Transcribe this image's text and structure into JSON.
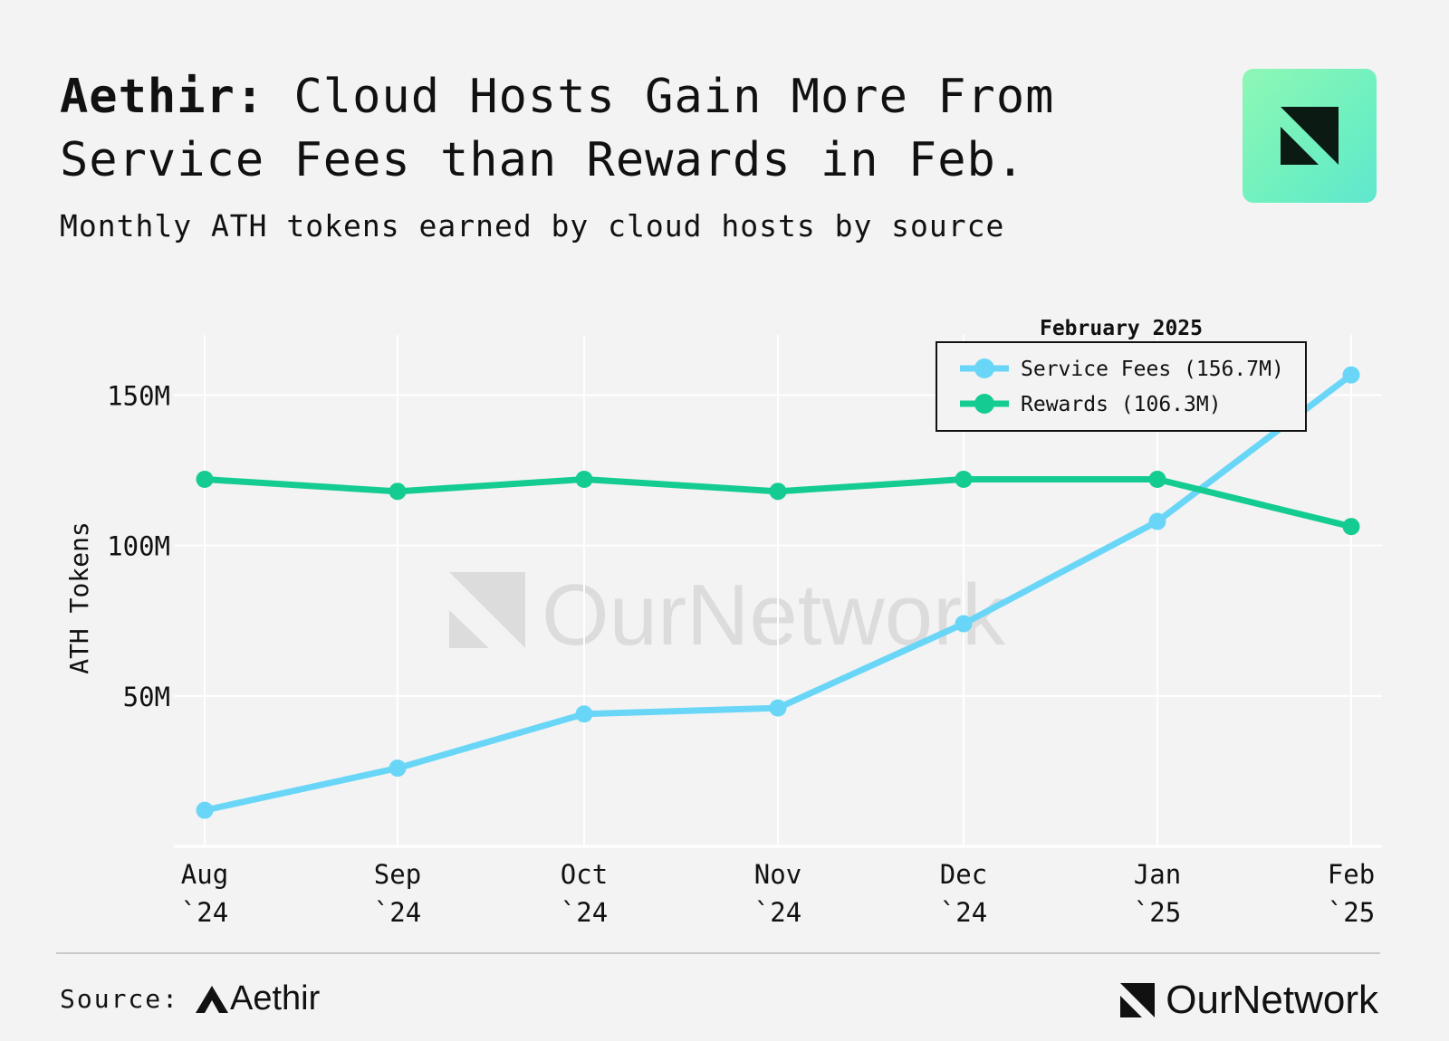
{
  "header": {
    "title_bold": "Aethir:",
    "title_rest": " Cloud Hosts Gain More From Service Fees than Rewards in Feb.",
    "subtitle": "Monthly ATH tokens earned by cloud hosts by source"
  },
  "brand_logo": {
    "icon": "ournetwork-logo-icon"
  },
  "watermark": {
    "text": "OurNetwork"
  },
  "footer": {
    "source_label": "Source:",
    "source_brand": "Aethir",
    "brand_name": "OurNetwork"
  },
  "chart_data": {
    "type": "line",
    "ylabel": "ATH Tokens",
    "xlabel": "",
    "ylim": [
      0,
      170000000
    ],
    "yticks": [
      50000000,
      100000000,
      150000000
    ],
    "ytick_labels": [
      "50M",
      "100M",
      "150M"
    ],
    "categories": [
      [
        "Aug",
        "`24"
      ],
      [
        "Sep",
        "`24"
      ],
      [
        "Oct",
        "`24"
      ],
      [
        "Nov",
        "`24"
      ],
      [
        "Dec",
        "`24"
      ],
      [
        "Jan",
        "`25"
      ],
      [
        "Feb",
        "`25"
      ]
    ],
    "legend_title": "February 2025",
    "legend_position": "top-right",
    "grid": true,
    "series": [
      {
        "name": "Service Fees (156.7M)",
        "color": "#6ad6f7",
        "values": [
          12000000,
          26000000,
          44000000,
          46000000,
          74000000,
          108000000,
          156700000
        ]
      },
      {
        "name": "Rewards (106.3M)",
        "color": "#14cc91",
        "values": [
          122000000,
          118000000,
          122000000,
          118000000,
          122000000,
          122000000,
          106300000
        ]
      }
    ]
  }
}
